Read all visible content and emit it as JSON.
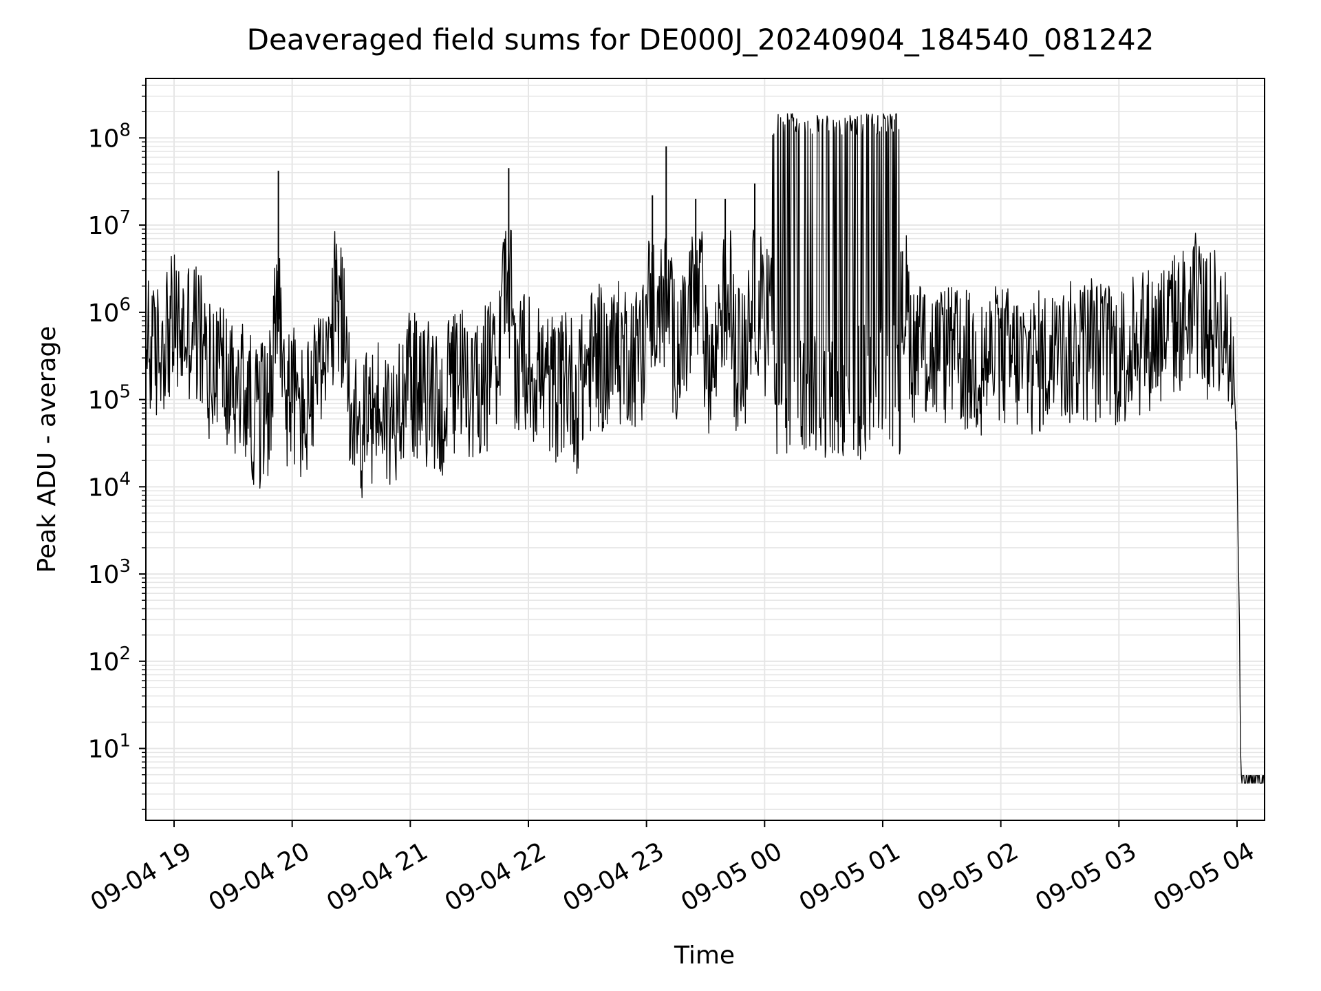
{
  "chart_data": {
    "type": "line",
    "title": "Deaveraged field sums for DE000J_20240904_184540_081242",
    "xlabel": "Time",
    "ylabel": "Peak ADU - average",
    "yscale": "log",
    "ylim": [
      1.5,
      480000000
    ],
    "xlim": [
      "2024-09-04T18:45:40",
      "2024-09-05T04:14:00"
    ],
    "grid": true,
    "line_color": "#000000",
    "grid_color": "#e6e6e6",
    "x_ticks": [
      {
        "time": "2024-09-04T19:00",
        "label": "09-04 19"
      },
      {
        "time": "2024-09-04T20:00",
        "label": "09-04 20"
      },
      {
        "time": "2024-09-04T21:00",
        "label": "09-04 21"
      },
      {
        "time": "2024-09-04T22:00",
        "label": "09-04 22"
      },
      {
        "time": "2024-09-04T23:00",
        "label": "09-04 23"
      },
      {
        "time": "2024-09-05T00:00",
        "label": "09-05 00"
      },
      {
        "time": "2024-09-05T01:00",
        "label": "09-05 01"
      },
      {
        "time": "2024-09-05T02:00",
        "label": "09-05 02"
      },
      {
        "time": "2024-09-05T03:00",
        "label": "09-05 03"
      },
      {
        "time": "2024-09-05T04:00",
        "label": "09-05 04"
      }
    ],
    "y_ticks": [
      {
        "value": 10,
        "base": "10",
        "exp": "1"
      },
      {
        "value": 100,
        "base": "10",
        "exp": "2"
      },
      {
        "value": 1000,
        "base": "10",
        "exp": "3"
      },
      {
        "value": 10000,
        "base": "10",
        "exp": "4"
      },
      {
        "value": 100000,
        "base": "10",
        "exp": "5"
      },
      {
        "value": 1000000,
        "base": "10",
        "exp": "6"
      },
      {
        "value": 10000000,
        "base": "10",
        "exp": "7"
      },
      {
        "value": 100000000,
        "base": "10",
        "exp": "8"
      }
    ],
    "series": [
      {
        "points": [
          [
            "2024-09-04T18:46",
            600000
          ],
          [
            "2024-09-04T18:50",
            450000
          ],
          [
            "2024-09-04T18:55",
            900000
          ],
          [
            "2024-09-04T19:00",
            1100000
          ],
          [
            "2024-09-04T19:05",
            900000
          ],
          [
            "2024-09-04T19:10",
            1200000
          ],
          [
            "2024-09-04T19:15",
            500000
          ],
          [
            "2024-09-04T19:20",
            250000
          ],
          [
            "2024-09-04T19:25",
            350000
          ],
          [
            "2024-09-04T19:30",
            150000
          ],
          [
            "2024-09-04T19:35",
            200000
          ],
          [
            "2024-09-04T19:40",
            120000
          ],
          [
            "2024-09-04T19:45",
            100000
          ],
          [
            "2024-09-04T19:50",
            200000
          ],
          [
            "2024-09-04T19:53",
            42000000
          ],
          [
            "2024-09-04T19:56",
            150000
          ],
          [
            "2024-09-04T20:00",
            200000
          ],
          [
            "2024-09-04T20:05",
            100000
          ],
          [
            "2024-09-04T20:10",
            150000
          ],
          [
            "2024-09-04T20:15",
            300000
          ],
          [
            "2024-09-04T20:20",
            500000
          ],
          [
            "2024-09-04T20:22",
            4000000
          ],
          [
            "2024-09-04T20:25",
            1500000
          ],
          [
            "2024-09-04T20:30",
            150000
          ],
          [
            "2024-09-04T20:35",
            60000
          ],
          [
            "2024-09-04T20:40",
            100000
          ],
          [
            "2024-09-04T20:45",
            150000
          ],
          [
            "2024-09-04T20:50",
            80000
          ],
          [
            "2024-09-04T20:55",
            200000
          ],
          [
            "2024-09-04T21:00",
            300000
          ],
          [
            "2024-09-04T21:05",
            150000
          ],
          [
            "2024-09-04T21:10",
            200000
          ],
          [
            "2024-09-04T21:15",
            100000
          ],
          [
            "2024-09-04T21:20",
            200000
          ],
          [
            "2024-09-04T21:25",
            300000
          ],
          [
            "2024-09-04T21:30",
            150000
          ],
          [
            "2024-09-04T21:35",
            250000
          ],
          [
            "2024-09-04T21:40",
            300000
          ],
          [
            "2024-09-04T21:45",
            400000
          ],
          [
            "2024-09-04T21:48",
            7000000
          ],
          [
            "2024-09-04T21:50",
            45000000
          ],
          [
            "2024-09-04T21:53",
            300000
          ],
          [
            "2024-09-04T21:58",
            400000
          ],
          [
            "2024-09-04T22:00",
            350000
          ],
          [
            "2024-09-04T22:05",
            300000
          ],
          [
            "2024-09-04T22:10",
            250000
          ],
          [
            "2024-09-04T22:15",
            200000
          ],
          [
            "2024-09-04T22:20",
            300000
          ],
          [
            "2024-09-04T22:25",
            150000
          ],
          [
            "2024-09-04T22:30",
            400000
          ],
          [
            "2024-09-04T22:35",
            500000
          ],
          [
            "2024-09-04T22:40",
            400000
          ],
          [
            "2024-09-04T22:45",
            500000
          ],
          [
            "2024-09-04T22:50",
            600000
          ],
          [
            "2024-09-04T22:55",
            500000
          ],
          [
            "2024-09-04T23:00",
            700000
          ],
          [
            "2024-09-04T23:03",
            22000000
          ],
          [
            "2024-09-04T23:06",
            600000
          ],
          [
            "2024-09-04T23:10",
            80000000
          ],
          [
            "2024-09-04T23:13",
            700000
          ],
          [
            "2024-09-04T23:20",
            600000
          ],
          [
            "2024-09-04T23:25",
            20000000
          ],
          [
            "2024-09-04T23:30",
            500000
          ],
          [
            "2024-09-04T23:35",
            400000
          ],
          [
            "2024-09-04T23:40",
            20000000
          ],
          [
            "2024-09-04T23:45",
            500000
          ],
          [
            "2024-09-04T23:50",
            400000
          ],
          [
            "2024-09-04T23:55",
            30000000
          ],
          [
            "2024-09-05T00:00",
            500000
          ],
          [
            "2024-09-05T00:05",
            100000000
          ],
          [
            "2024-09-05T00:10",
            190000000
          ],
          [
            "2024-09-05T00:20",
            150000000
          ],
          [
            "2024-09-05T00:30",
            180000000
          ],
          [
            "2024-09-05T00:40",
            150000000
          ],
          [
            "2024-09-05T00:50",
            190000000
          ],
          [
            "2024-09-05T01:00",
            190000000
          ],
          [
            "2024-09-05T01:08",
            190000000
          ],
          [
            "2024-09-05T01:10",
            5000000
          ],
          [
            "2024-09-05T01:15",
            600000
          ],
          [
            "2024-09-05T01:30",
            500000
          ],
          [
            "2024-09-05T01:45",
            400000
          ],
          [
            "2024-09-05T02:00",
            500000
          ],
          [
            "2024-09-05T02:15",
            400000
          ],
          [
            "2024-09-05T02:30",
            500000
          ],
          [
            "2024-09-05T02:45",
            600000
          ],
          [
            "2024-09-05T03:00",
            500000
          ],
          [
            "2024-09-05T03:15",
            800000
          ],
          [
            "2024-09-05T03:30",
            1200000
          ],
          [
            "2024-09-05T03:40",
            2000000
          ],
          [
            "2024-09-05T03:45",
            1000000
          ],
          [
            "2024-09-05T03:50",
            1500000
          ],
          [
            "2024-09-05T03:58",
            400000
          ],
          [
            "2024-09-05T04:00",
            30000
          ],
          [
            "2024-09-05T04:01",
            500
          ],
          [
            "2024-09-05T04:02",
            4
          ],
          [
            "2024-09-05T04:14",
            4
          ]
        ]
      }
    ]
  }
}
